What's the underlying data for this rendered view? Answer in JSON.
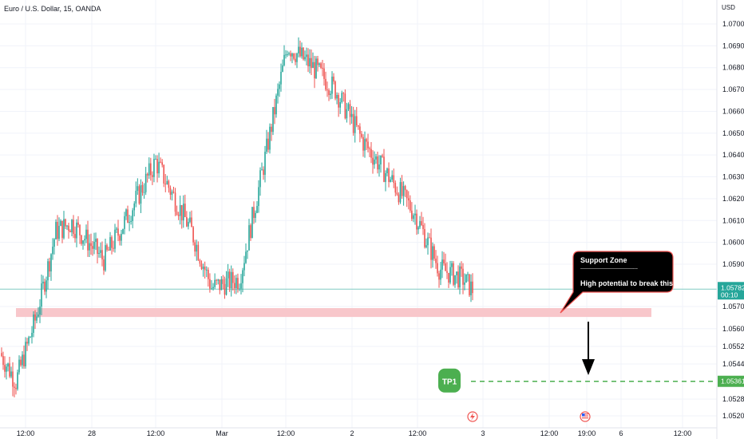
{
  "header": {
    "title": "Euro / U.S. Dollar, 15, OANDA",
    "currency": "USD"
  },
  "price_axis": {
    "ticks": [
      {
        "value": 1.07,
        "label": "1.07000"
      },
      {
        "value": 1.069,
        "label": "1.06900"
      },
      {
        "value": 1.068,
        "label": "1.06800"
      },
      {
        "value": 1.067,
        "label": "1.06700"
      },
      {
        "value": 1.066,
        "label": "1.06600"
      },
      {
        "value": 1.065,
        "label": "1.06500"
      },
      {
        "value": 1.064,
        "label": "1.06400"
      },
      {
        "value": 1.063,
        "label": "1.06300"
      },
      {
        "value": 1.062,
        "label": "1.06200"
      },
      {
        "value": 1.061,
        "label": "1.06100"
      },
      {
        "value": 1.06,
        "label": "1.06000"
      },
      {
        "value": 1.059,
        "label": "1.05900"
      },
      {
        "value": 1.057,
        "label": "1.05700"
      },
      {
        "value": 1.056,
        "label": "1.05600"
      },
      {
        "value": 1.0552,
        "label": "1.05520"
      },
      {
        "value": 1.0544,
        "label": "1.05440"
      },
      {
        "value": 1.0528,
        "label": "1.05280"
      },
      {
        "value": 1.052,
        "label": "1.05200"
      }
    ],
    "current_price_label": "1.05782",
    "current_price_value": 1.05782,
    "countdown": "00:10",
    "tp_price_label": "1.05361",
    "tp_price_value": 1.05361
  },
  "time_axis": {
    "labels": [
      "12:00",
      "28",
      "12:00",
      "Mar",
      "12:00",
      "2",
      "12:00",
      "3",
      "12:00",
      "19:00",
      "6",
      "12:00"
    ]
  },
  "annotations": {
    "callout_title": "Support Zone",
    "callout_divider": "------------------------------------",
    "callout_text": "High potential to break this zone",
    "tp_label": "TP1",
    "support_zone": [
      1.0566,
      1.057
    ]
  },
  "colors": {
    "up": "#26a69a",
    "down": "#ef5350",
    "support_zone": "#f8c7cb",
    "callout_bg": "#000000",
    "callout_border": "#ef5350",
    "tp_green": "#4caf50",
    "grid": "#f0f3fa",
    "axis_text": "#131722"
  },
  "chart_data": {
    "type": "candlestick",
    "title": "Euro / U.S. Dollar, 15, OANDA",
    "ylabel": "USD",
    "ylim": [
      1.0518,
      1.0707
    ],
    "close_path": [
      [
        0,
        1.0549
      ],
      [
        1,
        1.0541
      ],
      [
        2,
        1.0536
      ],
      [
        3,
        1.0548
      ],
      [
        4,
        1.0556
      ],
      [
        5,
        1.0563
      ],
      [
        6,
        1.0558
      ],
      [
        7,
        1.0566
      ],
      [
        8,
        1.056
      ],
      [
        9,
        1.0553
      ],
      [
        10,
        1.0581
      ],
      [
        11,
        1.0605
      ],
      [
        12,
        1.059
      ],
      [
        13,
        1.0597
      ],
      [
        14,
        1.0603
      ],
      [
        15,
        1.0609
      ],
      [
        16,
        1.061
      ],
      [
        17,
        1.0606
      ],
      [
        18,
        1.0609
      ],
      [
        19,
        1.0612
      ],
      [
        20,
        1.0604
      ],
      [
        21,
        1.0594
      ],
      [
        22,
        1.0592
      ],
      [
        23,
        1.0589
      ],
      [
        24,
        1.0586
      ],
      [
        25,
        1.0592
      ],
      [
        26,
        1.0604
      ],
      [
        27,
        1.0611
      ],
      [
        28,
        1.0612
      ],
      [
        29,
        1.0606
      ],
      [
        30,
        1.0615
      ],
      [
        31,
        1.0637
      ],
      [
        32,
        1.0625
      ],
      [
        33,
        1.0611
      ],
      [
        34,
        1.0605
      ],
      [
        35,
        1.0594
      ],
      [
        36,
        1.0591
      ],
      [
        37,
        1.0583
      ],
      [
        38,
        1.0578
      ],
      [
        39,
        1.0581
      ],
      [
        40,
        1.058
      ],
      [
        41,
        1.0579
      ],
      [
        42,
        1.0569
      ],
      [
        43,
        1.058
      ],
      [
        44,
        1.0583
      ],
      [
        45,
        1.0587
      ],
      [
        46,
        1.0594
      ],
      [
        47,
        1.0591
      ],
      [
        48,
        1.061
      ],
      [
        49,
        1.0635
      ],
      [
        50,
        1.0645
      ],
      [
        51,
        1.0653
      ],
      [
        52,
        1.0665
      ],
      [
        53,
        1.069
      ],
      [
        54,
        1.0683
      ],
      [
        55,
        1.0675
      ],
      [
        56,
        1.0665
      ],
      [
        57,
        1.0681
      ],
      [
        58,
        1.0677
      ],
      [
        59,
        1.0665
      ],
      [
        60,
        1.0662
      ],
      [
        61,
        1.0668
      ],
      [
        62,
        1.067
      ],
      [
        63,
        1.067
      ],
      [
        64,
        1.0662
      ],
      [
        65,
        1.0655
      ],
      [
        66,
        1.0648
      ],
      [
        67,
        1.0646
      ],
      [
        68,
        1.0642
      ],
      [
        69,
        1.0635
      ],
      [
        70,
        1.0631
      ],
      [
        71,
        1.0628
      ],
      [
        72,
        1.0614
      ],
      [
        73,
        1.0613
      ],
      [
        74,
        1.0595
      ],
      [
        75,
        1.0588
      ],
      [
        76,
        1.0608
      ],
      [
        77,
        1.0592
      ],
      [
        78,
        1.0583
      ],
      [
        79,
        1.0578
      ]
    ]
  },
  "events": {
    "flash_icon": "lightning-event-icon",
    "flag_icon": "us-flag-event-icon"
  }
}
